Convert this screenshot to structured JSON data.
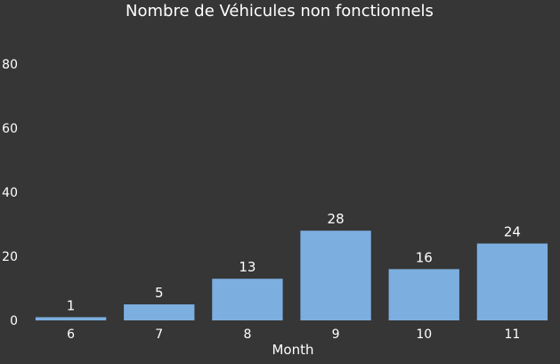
{
  "chart_data": {
    "type": "bar",
    "title": "Nombre de Véhicules non fonctionnels",
    "xlabel": "Month",
    "ylabel": "",
    "categories": [
      "6",
      "7",
      "8",
      "9",
      "10",
      "11"
    ],
    "values": [
      1,
      5,
      13,
      28,
      16,
      24
    ],
    "data_labels": [
      "1",
      "5",
      "13",
      "28",
      "16",
      "24"
    ],
    "yticks": [
      0,
      20,
      40,
      60,
      80
    ],
    "ytick_labels": [
      "0",
      "20",
      "40",
      "60",
      "80"
    ],
    "ylim": [
      0,
      80
    ],
    "grid": false,
    "bar_color": "#7caee0",
    "background_color": "#363636",
    "text_color": "#ffffff"
  }
}
